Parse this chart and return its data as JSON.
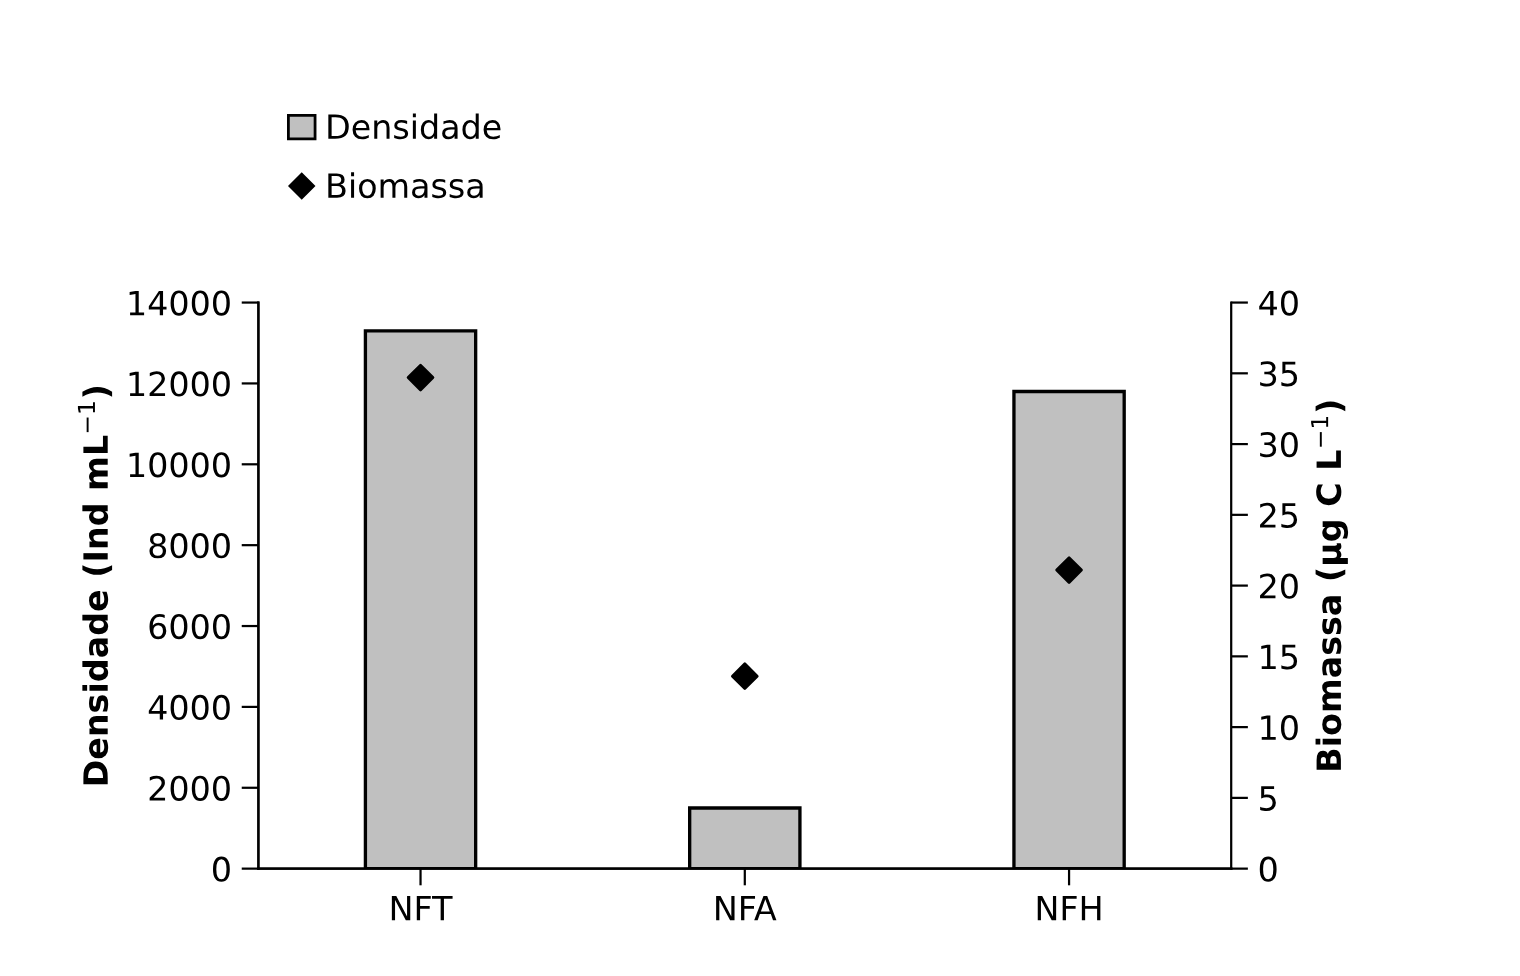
{
  "chart_data": {
    "type": "bar",
    "categories": [
      "NFT",
      "NFA",
      "NFH"
    ],
    "series": [
      {
        "name": "Densidade",
        "color": "#c0c0c0",
        "values": [
          13300,
          1500,
          11800
        ]
      },
      {
        "name": "Biomassa",
        "type": "scatter",
        "axis": "y2",
        "color": "#000000",
        "marker": "diamond",
        "values": [
          34.7,
          13.6,
          21.1
        ]
      }
    ],
    "ylabel": "Densidade (Ind mL$^{−1}$)",
    "y2label": "Biomassa (µg C L$^{−1}$)",
    "ylim": [
      0,
      14000
    ],
    "yticks": [
      0,
      2000,
      4000,
      6000,
      8000,
      10000,
      12000,
      14000
    ],
    "y2lim": [
      0,
      40
    ],
    "y2ticks": [
      0,
      5,
      10,
      15,
      20,
      25,
      30,
      35,
      40
    ],
    "grid": false,
    "legend": "top left"
  }
}
